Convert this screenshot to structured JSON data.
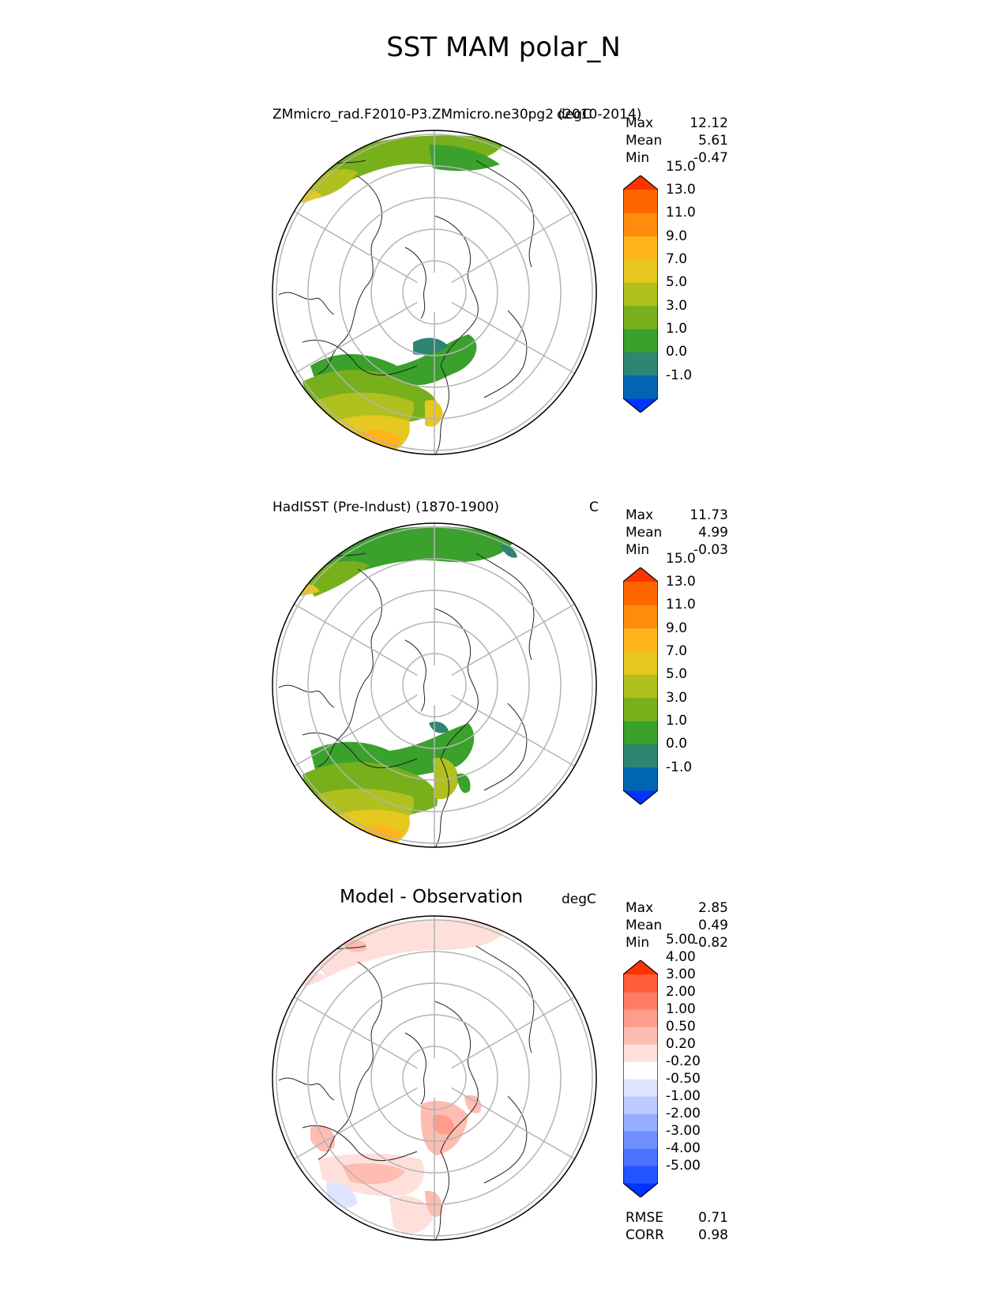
{
  "figure_title": "SST MAM polar_N",
  "panels": [
    {
      "title": "ZMmicro_rad.F2010-P3.ZMmicro.ne30pg2 (2010-2014)",
      "units": "degC",
      "stats": {
        "max_label": "Max",
        "max": "12.12",
        "mean_label": "Mean",
        "mean": "5.61",
        "min_label": "Min",
        "min": "-0.47"
      },
      "colorbar": {
        "colors": [
          "#0033ff",
          "#0066b3",
          "#2e8572",
          "#3aa12c",
          "#78b01c",
          "#b0c01e",
          "#e6c820",
          "#ffb41c",
          "#ff8c0c",
          "#ff6600",
          "#ff3300"
        ],
        "ticks": [
          "-1.0",
          "0.0",
          "1.0",
          "3.0",
          "5.0",
          "7.0",
          "9.0",
          "11.0",
          "13.0",
          "15.0"
        ]
      }
    },
    {
      "title": "HadISST (Pre-Indust) (1870-1900)",
      "units": "C",
      "stats": {
        "max_label": "Max",
        "max": "11.73",
        "mean_label": "Mean",
        "mean": "4.99",
        "min_label": "Min",
        "min": "-0.03"
      },
      "colorbar": {
        "colors": [
          "#0033ff",
          "#0066b3",
          "#2e8572",
          "#3aa12c",
          "#78b01c",
          "#b0c01e",
          "#e6c820",
          "#ffb41c",
          "#ff8c0c",
          "#ff6600",
          "#ff3300"
        ],
        "ticks": [
          "-1.0",
          "0.0",
          "1.0",
          "3.0",
          "5.0",
          "7.0",
          "9.0",
          "11.0",
          "13.0",
          "15.0"
        ]
      }
    },
    {
      "title": "Model - Observation",
      "units": "degC",
      "stats": {
        "max_label": "Max",
        "max": "2.85",
        "mean_label": "Mean",
        "mean": "0.49",
        "min_label": "Min",
        "min": "-0.82"
      },
      "colorbar": {
        "colors": [
          "#0033ff",
          "#2255ff",
          "#4a74ff",
          "#7190ff",
          "#97adff",
          "#bdcaff",
          "#dfe5ff",
          "#ffffff",
          "#ffdfd9",
          "#ffbcb0",
          "#ff9c8a",
          "#ff7c62",
          "#ff5c3c",
          "#ff3300"
        ],
        "ticks": [
          "-5.00",
          "-4.00",
          "-3.00",
          "-2.00",
          "-1.00",
          "-0.50",
          "-0.20",
          "0.20",
          "0.50",
          "1.00",
          "2.00",
          "3.00",
          "4.00",
          "5.00"
        ]
      }
    }
  ],
  "metrics": {
    "rmse_label": "RMSE",
    "rmse": "0.71",
    "corr_label": "CORR",
    "corr": "0.98"
  }
}
